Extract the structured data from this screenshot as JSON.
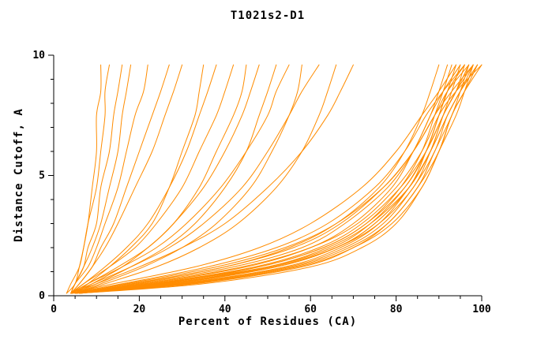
{
  "chart_data": {
    "type": "line",
    "title": "T1021s2-D1",
    "xlabel": "Percent of Residues (CA)",
    "ylabel": "Distance Cutoff, A",
    "xlim": [
      0,
      100
    ],
    "ylim": [
      0,
      10
    ],
    "xticks": [
      0,
      20,
      40,
      60,
      80,
      100
    ],
    "xminor_step": 5,
    "yticks": [
      0,
      5,
      10
    ],
    "yminor_step": 1,
    "grid": false,
    "legend": "none",
    "line_color": "#ff8c00",
    "axis_color": "#000000",
    "y_samples": [
      0.1,
      0.5,
      1.2,
      2,
      3,
      4.5,
      6,
      7.5,
      8.5,
      9.6
    ],
    "series": [
      [
        4,
        18,
        40,
        55,
        66,
        76,
        82,
        86,
        88,
        90
      ],
      [
        5,
        22,
        45,
        60,
        70,
        79,
        84,
        88,
        90,
        92
      ],
      [
        4,
        25,
        48,
        63,
        73,
        81,
        86,
        89,
        91,
        93
      ],
      [
        6,
        28,
        52,
        66,
        75,
        83,
        87,
        90,
        92,
        94
      ],
      [
        5,
        20,
        42,
        58,
        68,
        78,
        84,
        88,
        91,
        95
      ],
      [
        4,
        16,
        36,
        52,
        64,
        75,
        82,
        87,
        91,
        96
      ],
      [
        5,
        24,
        50,
        65,
        74,
        82,
        87,
        91,
        94,
        97
      ],
      [
        6,
        30,
        55,
        68,
        77,
        84,
        89,
        92,
        95,
        98
      ],
      [
        5,
        26,
        50,
        64,
        74,
        83,
        88,
        92,
        95,
        99
      ],
      [
        4,
        21,
        44,
        60,
        71,
        80,
        86,
        90,
        94,
        100
      ],
      [
        5,
        33,
        58,
        70,
        78,
        85,
        89,
        93,
        95,
        97
      ],
      [
        6,
        35,
        60,
        72,
        80,
        86,
        90,
        93,
        96,
        99
      ],
      [
        4,
        14,
        33,
        48,
        60,
        72,
        80,
        86,
        90,
        94
      ],
      [
        5,
        19,
        40,
        56,
        67,
        77,
        84,
        89,
        93,
        98
      ],
      [
        6,
        27,
        52,
        66,
        76,
        84,
        88,
        91,
        93,
        95
      ],
      [
        5,
        31,
        56,
        69,
        78,
        85,
        90,
        93,
        96,
        100
      ],
      [
        4,
        23,
        47,
        62,
        72,
        81,
        87,
        91,
        94,
        98
      ],
      [
        5,
        29,
        54,
        67,
        76,
        83,
        88,
        92,
        95,
        99
      ],
      [
        6,
        24,
        48,
        63,
        73,
        82,
        87,
        90,
        92,
        96
      ],
      [
        5,
        17,
        38,
        54,
        66,
        77,
        84,
        89,
        92,
        97
      ],
      [
        4,
        26,
        51,
        66,
        75,
        83,
        88,
        91,
        94,
        96
      ],
      [
        6,
        32,
        57,
        70,
        79,
        86,
        90,
        94,
        96,
        98
      ],
      [
        4,
        10,
        20,
        30,
        40,
        50,
        58,
        64,
        67,
        70
      ],
      [
        5,
        12,
        24,
        34,
        43,
        52,
        58,
        62,
        64,
        66
      ],
      [
        4,
        9,
        18,
        27,
        35,
        44,
        50,
        55,
        58,
        62
      ],
      [
        5,
        11,
        21,
        30,
        38,
        46,
        51,
        55,
        57,
        58
      ],
      [
        4,
        8,
        16,
        24,
        31,
        39,
        45,
        50,
        52,
        55
      ],
      [
        5,
        10,
        18,
        26,
        33,
        40,
        45,
        48,
        50,
        52
      ],
      [
        4,
        8,
        15,
        22,
        28,
        35,
        40,
        44,
        46,
        48
      ],
      [
        5,
        9,
        16,
        22,
        28,
        34,
        38,
        42,
        44,
        45
      ],
      [
        4,
        7,
        13,
        19,
        24,
        30,
        34,
        38,
        40,
        42
      ],
      [
        4,
        7,
        12,
        17,
        22,
        27,
        31,
        34,
        36,
        38
      ],
      [
        5,
        8,
        13,
        18,
        23,
        27,
        30,
        33,
        34,
        35
      ],
      [
        4,
        6,
        9,
        12,
        15,
        19,
        23,
        26,
        28,
        30
      ],
      [
        4,
        6,
        9,
        11,
        14,
        17,
        20,
        23,
        25,
        27
      ],
      [
        4,
        5,
        8,
        10,
        12,
        15,
        17,
        19,
        21,
        22
      ],
      [
        4,
        5,
        7,
        9,
        11,
        13,
        15,
        16,
        17,
        18
      ],
      [
        4,
        5,
        7,
        8,
        10,
        11,
        13,
        14,
        15,
        16
      ],
      [
        3,
        5,
        6,
        7,
        8,
        10,
        11,
        12,
        12,
        13
      ],
      [
        3,
        4,
        6,
        7,
        8,
        9,
        10,
        10,
        11,
        11
      ]
    ]
  }
}
